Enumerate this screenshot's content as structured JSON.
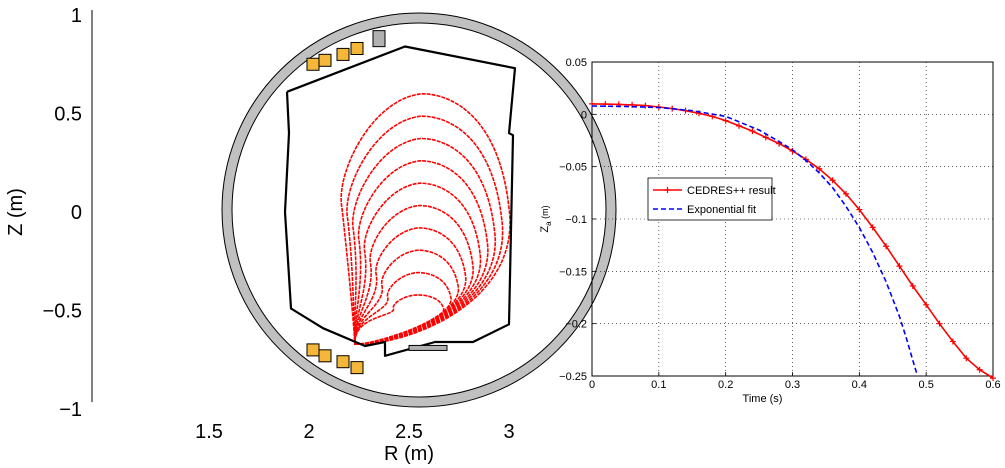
{
  "chart_data": [
    {
      "type": "line",
      "panel": "left",
      "xlabel": "R (m)",
      "ylabel": "Z (m)",
      "xticks": [
        "1.5",
        "2",
        "2.5",
        "3"
      ],
      "yticks": [
        "1",
        "0.5",
        "0",
        "−0.5",
        "−1"
      ],
      "xlim": [
        1.43,
        3.1
      ],
      "ylim": [
        -1.0,
        1.0
      ],
      "vessel_wall": {
        "center": [
          2.55,
          0.01
        ],
        "outer_radius": 0.985,
        "inner_radius": 0.935
      },
      "first_wall": [
        [
          1.89,
          0.61
        ],
        [
          2.48,
          0.84
        ],
        [
          3.03,
          0.73
        ],
        [
          3.0,
          0.4
        ],
        [
          3.02,
          0.39
        ],
        [
          3.0,
          -0.57
        ],
        [
          2.82,
          -0.66
        ],
        [
          2.63,
          -0.66
        ],
        [
          2.38,
          -0.73
        ],
        [
          2.38,
          -0.66
        ],
        [
          2.28,
          -0.68
        ],
        [
          2.07,
          -0.59
        ],
        [
          1.91,
          -0.49
        ],
        [
          1.88,
          0.0
        ],
        [
          1.9,
          0.4
        ],
        [
          1.89,
          0.61
        ]
      ],
      "flux_surfaces": {
        "count": 10,
        "xpoint": [
          2.23,
          -0.67
        ],
        "axis_r": 2.55,
        "bottom_z": -0.56,
        "top_z_outer": 0.6,
        "color": "#ff0000"
      },
      "coils_upper": [
        [
          2.02,
          0.75
        ],
        [
          2.08,
          0.77
        ],
        [
          2.17,
          0.8
        ],
        [
          2.24,
          0.83
        ]
      ],
      "coils_lower": [
        [
          2.02,
          -0.7
        ],
        [
          2.08,
          -0.73
        ],
        [
          2.17,
          -0.76
        ],
        [
          2.24,
          -0.79
        ]
      ],
      "coil_gray_upper": [
        2.35,
        0.88
      ],
      "plate_lower": [
        [
          2.5,
          -0.69
        ],
        [
          2.69,
          -0.69
        ]
      ],
      "colors": {
        "vessel": "#c0c0c0",
        "coil": "#f5b73a",
        "surfaces": "#ff0000",
        "wall": "#000000"
      }
    },
    {
      "type": "line",
      "panel": "right",
      "xlabel": "Time (s)",
      "ylabel": "Z",
      "ylabel_sub": "a",
      "ylabel_unit": " (m)",
      "xlim": [
        0,
        0.6
      ],
      "ylim": [
        -0.25,
        0.05
      ],
      "xticks": [
        "0",
        "0.1",
        "0.2",
        "0.3",
        "0.4",
        "0.5",
        "0.6"
      ],
      "yticks": [
        "0.05",
        "0",
        "−0.05",
        "−0.1",
        "−0.15",
        "−0.2",
        "−0.25"
      ],
      "grid": true,
      "legend_placement": "center-left",
      "series": [
        {
          "name": "CEDRES++ result",
          "color": "#ff0000",
          "style": "solid-plus",
          "x": [
            0,
            0.02,
            0.04,
            0.06,
            0.08,
            0.1,
            0.12,
            0.14,
            0.16,
            0.18,
            0.2,
            0.22,
            0.24,
            0.26,
            0.28,
            0.3,
            0.32,
            0.34,
            0.36,
            0.38,
            0.4,
            0.42,
            0.44,
            0.46,
            0.48,
            0.5,
            0.52,
            0.54,
            0.56,
            0.58,
            0.6
          ],
          "y": [
            0.01,
            0.0098,
            0.0095,
            0.009,
            0.0083,
            0.007,
            0.0055,
            0.0035,
            0.001,
            -0.002,
            -0.006,
            -0.011,
            -0.016,
            -0.022,
            -0.028,
            -0.035,
            -0.043,
            -0.052,
            -0.063,
            -0.076,
            -0.091,
            -0.108,
            -0.126,
            -0.145,
            -0.164,
            -0.182,
            -0.2,
            -0.217,
            -0.233,
            -0.244,
            -0.252
          ]
        },
        {
          "name": "Exponential fit",
          "color": "#0000ff",
          "style": "dashed",
          "x": [
            0,
            0.05,
            0.1,
            0.15,
            0.2,
            0.25,
            0.28,
            0.3,
            0.32,
            0.34,
            0.36,
            0.38,
            0.4,
            0.42,
            0.44,
            0.46,
            0.47,
            0.48,
            0.487
          ],
          "y": [
            0.008,
            0.0075,
            0.0065,
            0.0035,
            -0.002,
            -0.015,
            -0.026,
            -0.034,
            -0.044,
            -0.056,
            -0.07,
            -0.088,
            -0.108,
            -0.132,
            -0.16,
            -0.193,
            -0.213,
            -0.235,
            -0.25
          ]
        }
      ]
    }
  ]
}
